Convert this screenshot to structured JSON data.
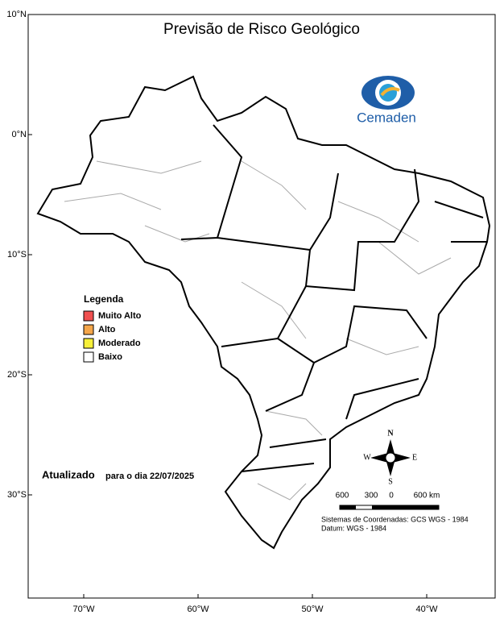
{
  "map": {
    "title": "Previsão de Risco Geológico",
    "logo": "Cemaden",
    "lat_ticks": [
      {
        "value": 10,
        "label": "10°N"
      },
      {
        "value": 0,
        "label": "0°N"
      },
      {
        "value": -10,
        "label": "10°S"
      },
      {
        "value": -20,
        "label": "20°S"
      },
      {
        "value": -30,
        "label": "30°S"
      }
    ],
    "lon_ticks": [
      {
        "value": -70,
        "label": "70°W"
      },
      {
        "value": -60,
        "label": "60°W"
      },
      {
        "value": -50,
        "label": "50°W"
      },
      {
        "value": -40,
        "label": "40°W"
      }
    ],
    "legend": {
      "title": "Legenda",
      "items": [
        {
          "label": "Muito Alto",
          "color": "#f05050"
        },
        {
          "label": "Alto",
          "color": "#f5a64a"
        },
        {
          "label": "Moderado",
          "color": "#f7f03a"
        },
        {
          "label": "Baixo",
          "color": "#ffffff"
        }
      ]
    },
    "updated": {
      "label": "Atualizado",
      "date": "para o dia 22/07/2025"
    },
    "compass": {
      "n": "N",
      "s": "S",
      "w": "W",
      "e": "E"
    },
    "scale": [
      "600",
      "300",
      "0",
      "600 km"
    ],
    "notes": [
      "Sistemas de Coordenadas: GCS WGS - 1984",
      "Datum: WGS - 1984"
    ]
  }
}
